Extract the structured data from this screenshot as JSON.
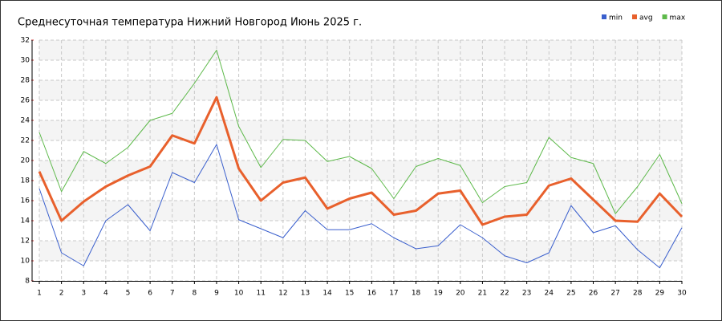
{
  "chart_data": {
    "type": "line",
    "title": "Среднесуточная температура Нижний Новгород  Июнь 2025 г.",
    "x": [
      1,
      2,
      3,
      4,
      5,
      6,
      7,
      8,
      9,
      10,
      11,
      12,
      13,
      14,
      15,
      16,
      17,
      18,
      19,
      20,
      21,
      22,
      23,
      24,
      25,
      26,
      27,
      28,
      29,
      30
    ],
    "xlim": [
      1,
      30
    ],
    "xticks": [
      1,
      2,
      3,
      4,
      5,
      6,
      7,
      8,
      9,
      10,
      11,
      12,
      13,
      14,
      15,
      16,
      17,
      18,
      19,
      20,
      21,
      22,
      23,
      24,
      25,
      26,
      27,
      28,
      29,
      30
    ],
    "ylim": [
      8,
      32
    ],
    "yticks": [
      8,
      10,
      12,
      14,
      16,
      18,
      20,
      22,
      24,
      26,
      28,
      30,
      32
    ],
    "grid": true,
    "legend": "top-right",
    "series": [
      {
        "name": "min",
        "color": "#3a5fcd",
        "values": [
          17.2,
          10.8,
          9.5,
          14.0,
          15.6,
          13.0,
          18.8,
          17.8,
          21.6,
          14.1,
          13.2,
          12.3,
          15.0,
          13.1,
          13.1,
          13.7,
          12.3,
          11.2,
          11.5,
          13.6,
          12.3,
          10.5,
          9.8,
          10.8,
          15.5,
          12.8,
          13.5,
          11.1,
          9.3,
          13.3
        ]
      },
      {
        "name": "avg",
        "color": "#e8602c",
        "values": [
          18.9,
          14.0,
          15.9,
          17.4,
          18.5,
          19.4,
          22.5,
          21.7,
          26.3,
          19.2,
          16.0,
          17.8,
          18.3,
          15.2,
          16.2,
          16.8,
          14.6,
          15.0,
          16.7,
          17.0,
          13.6,
          14.4,
          14.6,
          17.5,
          18.2,
          16.1,
          14.0,
          13.9,
          16.7,
          14.4
        ]
      },
      {
        "name": "max",
        "color": "#5db94a",
        "values": [
          22.8,
          16.9,
          20.9,
          19.7,
          21.3,
          24.0,
          24.7,
          27.7,
          31.0,
          23.4,
          19.3,
          22.1,
          22.0,
          19.9,
          20.4,
          19.2,
          16.2,
          19.4,
          20.2,
          19.5,
          15.8,
          17.4,
          17.8,
          22.3,
          20.3,
          19.7,
          14.7,
          17.4,
          20.6,
          15.7
        ]
      }
    ]
  }
}
